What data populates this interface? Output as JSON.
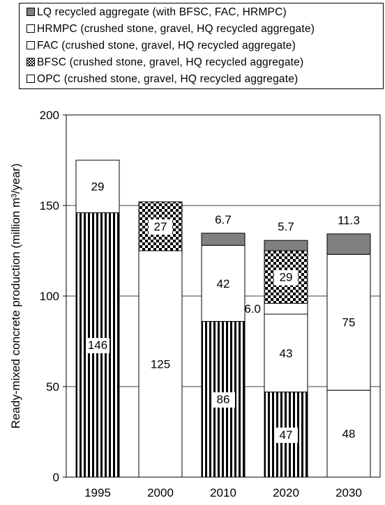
{
  "chart_data": {
    "type": "bar",
    "stacked": true,
    "categories": [
      "1995",
      "2000",
      "2010",
      "2020",
      "2030"
    ],
    "ylabel": "Ready-mixed concrete production (million m³/year)",
    "ylim": [
      0,
      200
    ],
    "yticks": [
      0,
      50,
      100,
      150,
      200
    ],
    "grid": "horizontal",
    "legend_position": "top",
    "legend": [
      {
        "key": "lq",
        "label": "LQ recycled aggregate (with BFSC, FAC, HRMPC)",
        "fill": "gray"
      },
      {
        "key": "hrmpc",
        "label": "HRMPC (crushed stone, gravel, HQ recycled aggregate)",
        "fill": "white"
      },
      {
        "key": "fac",
        "label": "FAC  (crushed stone, gravel, HQ recycled aggregate)",
        "fill": "white"
      },
      {
        "key": "bfsc",
        "label": "BFSC (crushed stone, gravel, HQ recycled aggregate)",
        "fill": "checker"
      },
      {
        "key": "opc",
        "label": "OPC  (crushed stone, gravel, HQ recycled aggregate)",
        "fill": "white"
      }
    ],
    "series": [
      {
        "key": "opc",
        "fill": "stripe",
        "values": [
          146,
          0,
          86,
          47,
          0
        ],
        "labels": [
          "146",
          "",
          "86",
          "47",
          ""
        ]
      },
      {
        "key": "fac",
        "fill": "white",
        "values": [
          29,
          125,
          42,
          43,
          48
        ],
        "labels": [
          "29",
          "125",
          "42",
          "43",
          "48"
        ]
      },
      {
        "key": "hrmpc",
        "fill": "white",
        "values": [
          0,
          0,
          0,
          6.0,
          75
        ],
        "labels": [
          "",
          "",
          "",
          "6.0",
          "75"
        ]
      },
      {
        "key": "bfsc",
        "fill": "checker",
        "values": [
          0,
          27,
          0,
          29,
          0
        ],
        "labels": [
          "",
          "27",
          "",
          "29",
          ""
        ]
      },
      {
        "key": "lq",
        "fill": "gray",
        "values": [
          0,
          0,
          6.7,
          5.7,
          11.3
        ],
        "labels": [
          "",
          "",
          "6.7",
          "5.7",
          "11.3"
        ]
      }
    ]
  }
}
